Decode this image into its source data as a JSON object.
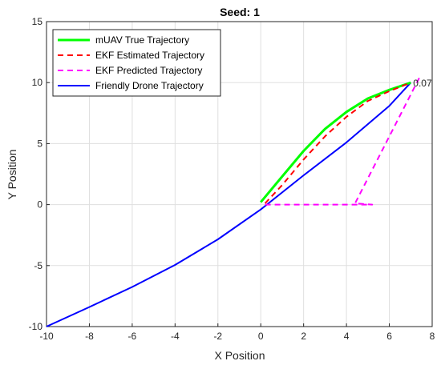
{
  "chart_data": {
    "type": "line",
    "title": "Seed: 1",
    "xlabel": "X Position",
    "ylabel": "Y Position",
    "xlim": [
      -10,
      8
    ],
    "ylim": [
      -10,
      15
    ],
    "xticks": [
      -10,
      -8,
      -6,
      -4,
      -2,
      0,
      2,
      4,
      6,
      8
    ],
    "yticks": [
      -10,
      -5,
      0,
      5,
      10,
      15
    ],
    "grid": true,
    "legend_position": "top-left",
    "series": [
      {
        "name": "mUAV True Trajectory",
        "color": "#00ff00",
        "dash": "solid",
        "x": [
          0,
          1,
          2,
          3,
          4,
          5,
          6,
          7
        ],
        "y": [
          0.2,
          2.3,
          4.4,
          6.2,
          7.6,
          8.7,
          9.4,
          10.0
        ]
      },
      {
        "name": "EKF Estimated Trajectory",
        "color": "#ff0000",
        "dash": "dashed",
        "x": [
          0.2,
          1,
          2,
          3,
          4,
          5,
          6,
          7
        ],
        "y": [
          0.1,
          1.6,
          3.7,
          5.6,
          7.2,
          8.5,
          9.3,
          10.0
        ]
      },
      {
        "name": "EKF Predicted Trajectory",
        "color": "#ff00ff",
        "dash": "dashed",
        "x": [
          0.2,
          4.4,
          5.2,
          4.4,
          7.4
        ],
        "y": [
          0.0,
          0.0,
          0.0,
          0.1,
          10.4
        ]
      },
      {
        "name": "Friendly Drone Trajectory",
        "color": "#0000ff",
        "dash": "solid",
        "x": [
          -10,
          -8,
          -6,
          -4,
          -2,
          0,
          2,
          4,
          6,
          7
        ],
        "y": [
          -10,
          -8.4,
          -6.75,
          -4.95,
          -2.85,
          -0.4,
          2.4,
          5.1,
          8.1,
          10.0
        ]
      }
    ],
    "annotations": [
      {
        "x": 7.0,
        "y": 10.0,
        "text": "0.07"
      }
    ]
  }
}
